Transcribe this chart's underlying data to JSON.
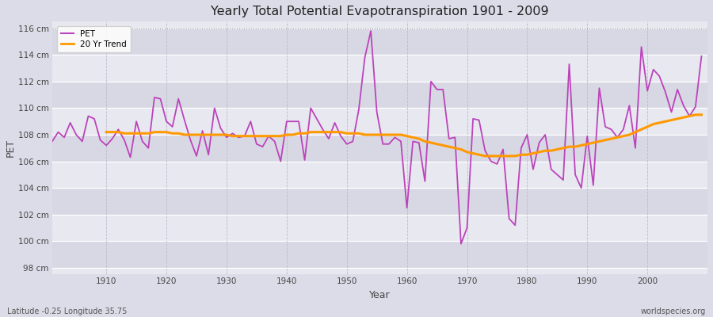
{
  "title": "Yearly Total Potential Evapotranspiration 1901 - 2009",
  "xlabel": "Year",
  "ylabel": "PET",
  "subtitle_left": "Latitude -0.25 Longitude 35.75",
  "subtitle_right": "worldspecies.org",
  "ylim": [
    97.5,
    116.5
  ],
  "yticks": [
    98,
    100,
    102,
    104,
    106,
    108,
    110,
    112,
    114,
    116
  ],
  "ytick_labels": [
    "98 cm",
    "100 cm",
    "102 cm",
    "104 cm",
    "106 cm",
    "108 cm",
    "110 cm",
    "112 cm",
    "114 cm",
    "116 cm"
  ],
  "xlim": [
    1901,
    2010
  ],
  "xticks": [
    1910,
    1920,
    1930,
    1940,
    1950,
    1960,
    1970,
    1980,
    1990,
    2000
  ],
  "pet_color": "#bb44bb",
  "trend_color": "#ff9900",
  "bg_color": "#dcdce8",
  "band_light": "#e8e8f0",
  "band_dark": "#d8d8e4",
  "legend_pet": "PET",
  "legend_trend": "20 Yr Trend",
  "years": [
    1901,
    1902,
    1903,
    1904,
    1905,
    1906,
    1907,
    1908,
    1909,
    1910,
    1911,
    1912,
    1913,
    1914,
    1915,
    1916,
    1917,
    1918,
    1919,
    1920,
    1921,
    1922,
    1923,
    1924,
    1925,
    1926,
    1927,
    1928,
    1929,
    1930,
    1931,
    1932,
    1933,
    1934,
    1935,
    1936,
    1937,
    1938,
    1939,
    1940,
    1941,
    1942,
    1943,
    1944,
    1945,
    1946,
    1947,
    1948,
    1949,
    1950,
    1951,
    1952,
    1953,
    1954,
    1955,
    1956,
    1957,
    1958,
    1959,
    1960,
    1961,
    1962,
    1963,
    1964,
    1965,
    1966,
    1967,
    1968,
    1969,
    1970,
    1971,
    1972,
    1973,
    1974,
    1975,
    1976,
    1977,
    1978,
    1979,
    1980,
    1981,
    1982,
    1983,
    1984,
    1985,
    1986,
    1987,
    1988,
    1989,
    1990,
    1991,
    1992,
    1993,
    1994,
    1995,
    1996,
    1997,
    1998,
    1999,
    2000,
    2001,
    2002,
    2003,
    2004,
    2005,
    2006,
    2007,
    2008,
    2009
  ],
  "pet_values": [
    107.5,
    108.2,
    107.8,
    108.9,
    108.0,
    107.5,
    109.4,
    109.2,
    107.6,
    107.2,
    107.7,
    108.4,
    107.6,
    106.3,
    109.0,
    107.5,
    107.0,
    110.8,
    110.7,
    109.0,
    108.6,
    110.7,
    109.1,
    107.6,
    106.4,
    108.3,
    106.5,
    110.0,
    108.5,
    107.8,
    108.1,
    107.8,
    107.9,
    109.0,
    107.3,
    107.1,
    107.9,
    107.5,
    106.0,
    109.0,
    109.0,
    109.0,
    106.1,
    110.0,
    109.2,
    108.4,
    107.7,
    108.9,
    107.9,
    107.3,
    107.5,
    109.9,
    113.8,
    115.8,
    109.7,
    107.3,
    107.3,
    107.8,
    107.5,
    102.5,
    107.5,
    107.4,
    104.5,
    112.0,
    111.4,
    111.4,
    107.7,
    107.8,
    99.8,
    101.0,
    109.2,
    109.1,
    106.8,
    106.0,
    105.8,
    106.9,
    101.7,
    101.2,
    107.0,
    108.0,
    105.4,
    107.4,
    108.0,
    105.4,
    105.0,
    104.6,
    113.3,
    105.0,
    104.0,
    107.9,
    104.2,
    111.5,
    108.6,
    108.4,
    107.8,
    108.4,
    110.2,
    107.0,
    114.6,
    111.3,
    112.9,
    112.4,
    111.2,
    109.7,
    111.4,
    110.2,
    109.4,
    110.1,
    113.9
  ],
  "trend_years": [
    1910,
    1911,
    1912,
    1913,
    1914,
    1915,
    1916,
    1917,
    1918,
    1919,
    1920,
    1921,
    1922,
    1923,
    1924,
    1925,
    1926,
    1927,
    1928,
    1929,
    1930,
    1931,
    1932,
    1933,
    1934,
    1935,
    1936,
    1937,
    1938,
    1939,
    1940,
    1941,
    1942,
    1943,
    1944,
    1945,
    1946,
    1947,
    1948,
    1949,
    1950,
    1951,
    1952,
    1953,
    1954,
    1955,
    1956,
    1957,
    1958,
    1959,
    1960,
    1961,
    1962,
    1963,
    1964,
    1965,
    1966,
    1967,
    1968,
    1969,
    1970,
    1971,
    1972,
    1973,
    1974,
    1975,
    1976,
    1977,
    1978,
    1979,
    1980,
    1981,
    1982,
    1983,
    1984,
    1985,
    1986,
    1987,
    1988,
    1989,
    1990,
    1991,
    1992,
    1993,
    1994,
    1995,
    1996,
    1997,
    1998,
    1999,
    2000,
    2001,
    2002,
    2003,
    2004,
    2005,
    2006,
    2007,
    2008,
    2009
  ],
  "trend_values": [
    108.2,
    108.2,
    108.2,
    108.1,
    108.1,
    108.1,
    108.1,
    108.1,
    108.2,
    108.2,
    108.2,
    108.1,
    108.1,
    108.0,
    108.0,
    108.0,
    108.0,
    108.0,
    108.0,
    108.0,
    108.0,
    107.9,
    107.9,
    107.9,
    107.9,
    107.9,
    107.9,
    107.9,
    107.9,
    107.9,
    108.0,
    108.0,
    108.1,
    108.1,
    108.2,
    108.2,
    108.2,
    108.2,
    108.2,
    108.2,
    108.1,
    108.1,
    108.1,
    108.0,
    108.0,
    108.0,
    108.0,
    108.0,
    108.0,
    108.0,
    107.9,
    107.8,
    107.7,
    107.5,
    107.4,
    107.3,
    107.2,
    107.1,
    107.0,
    106.9,
    106.7,
    106.6,
    106.5,
    106.4,
    106.4,
    106.4,
    106.4,
    106.4,
    106.4,
    106.5,
    106.5,
    106.6,
    106.7,
    106.8,
    106.8,
    106.9,
    107.0,
    107.1,
    107.1,
    107.2,
    107.3,
    107.4,
    107.5,
    107.6,
    107.7,
    107.8,
    107.9,
    108.0,
    108.2,
    108.4,
    108.6,
    108.8,
    108.9,
    109.0,
    109.1,
    109.2,
    109.3,
    109.4,
    109.5,
    109.5
  ]
}
